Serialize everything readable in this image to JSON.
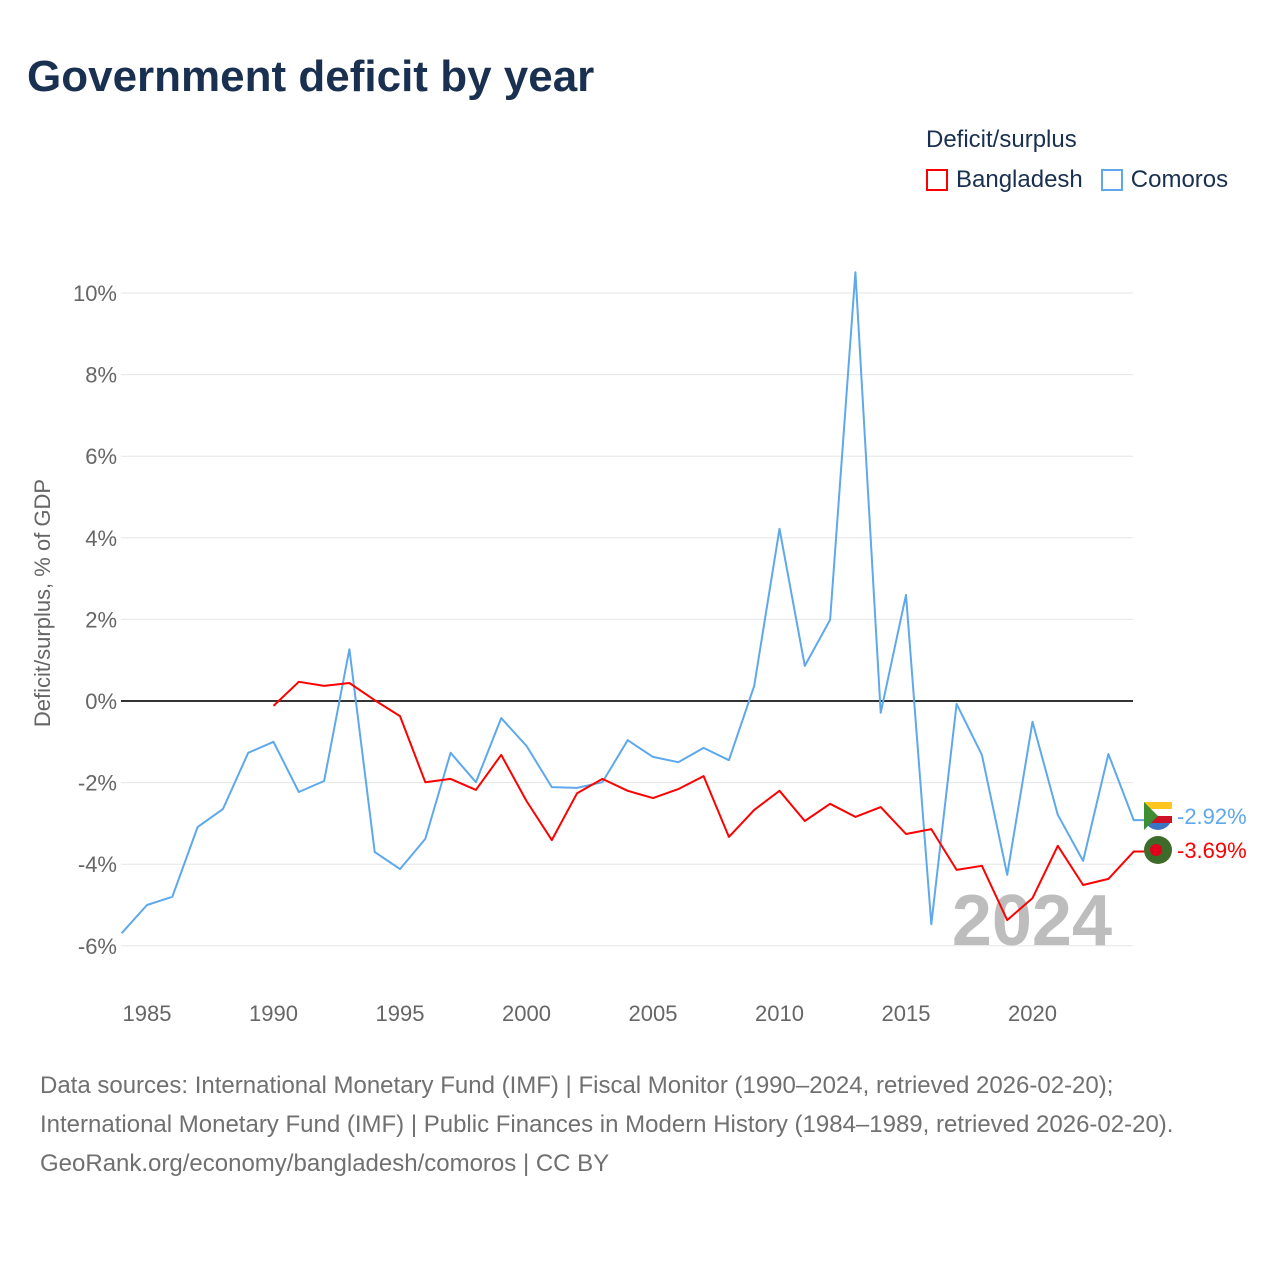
{
  "chart_data": {
    "type": "line",
    "title": "Government deficit by year",
    "ylabel": "Deficit/surplus, % of GDP",
    "xlabel": "",
    "legend_title": "Deficit/surplus",
    "legend_position": "top-right",
    "xlim": [
      1984,
      2024
    ],
    "ylim": [
      -7,
      11
    ],
    "x_ticks": [
      1985,
      1990,
      1995,
      2000,
      2005,
      2010,
      2015,
      2020
    ],
    "x_tick_labels": [
      "1985",
      "1990",
      "1995",
      "2000",
      "2005",
      "2010",
      "2015",
      "2020"
    ],
    "y_ticks": [
      -6,
      -4,
      -2,
      0,
      2,
      4,
      6,
      8,
      10
    ],
    "y_tick_labels": [
      "-6%",
      "-4%",
      "-2%",
      "0%",
      "2%",
      "4%",
      "6%",
      "8%",
      "10%"
    ],
    "grid": true,
    "year_annotation": "2024",
    "series": [
      {
        "name": "Bangladesh",
        "color": "#ff0000",
        "end_label": "-3.69%",
        "start_year": 1990,
        "values": [
          -0.12,
          0.47,
          0.37,
          0.44,
          0.02,
          -0.37,
          -1.99,
          -1.91,
          -2.18,
          -1.32,
          -2.45,
          -3.41,
          -2.26,
          -1.91,
          -2.2,
          -2.38,
          -2.16,
          -1.84,
          -3.33,
          -2.67,
          -2.2,
          -2.94,
          -2.52,
          -2.84,
          -2.6,
          -3.26,
          -3.14,
          -4.14,
          -4.04,
          -5.37,
          -4.83,
          -3.55,
          -4.51,
          -4.36,
          -3.69
        ]
      },
      {
        "name": "Comoros",
        "color": "#5ea8ec",
        "end_label": "-2.92%",
        "start_year": 1984,
        "values": [
          -5.69,
          -5.0,
          -4.8,
          -3.09,
          -2.65,
          -1.27,
          -1.0,
          -2.23,
          -1.96,
          1.27,
          -3.7,
          -4.12,
          -3.38,
          -1.27,
          -1.99,
          -0.42,
          -1.1,
          -2.11,
          -2.13,
          -1.99,
          -0.96,
          -1.37,
          -1.5,
          -1.15,
          -1.45,
          0.37,
          4.22,
          0.86,
          1.99,
          10.51,
          -0.29,
          2.6,
          -5.47,
          -0.07,
          -1.32,
          -4.26,
          -0.51,
          -2.79,
          -3.92,
          -1.3,
          -2.92
        ]
      }
    ]
  },
  "footer": {
    "sources": "Data sources: International Monetary Fund (IMF) | Fiscal Monitor (1990–2024, retrieved 2026-02-20); International Monetary Fund (IMF) | Public Finances in Modern History (1984–1989, retrieved 2026-02-20).",
    "credit": "GeoRank.org/economy/bangladesh/comoros | CC BY"
  }
}
